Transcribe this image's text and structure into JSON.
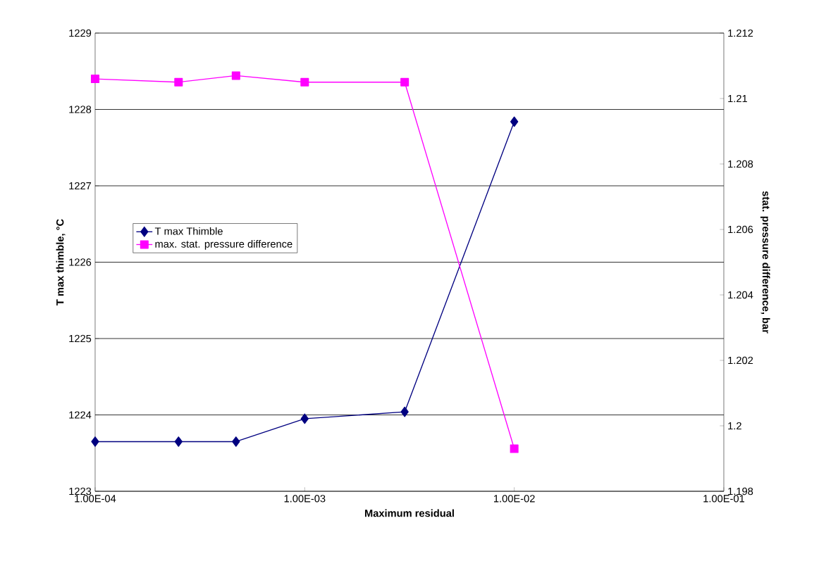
{
  "chart_data": {
    "type": "line",
    "xlabel": "Maximum residual",
    "ylabel": "T max thimble, °C",
    "y2label": "stat. pressure difference, bar",
    "log": "x",
    "grid": "y",
    "legend": "left",
    "line_style": "solid",
    "x": [
      0.0001,
      0.00025,
      0.00047,
      0.001,
      0.003,
      0.01
    ],
    "xlim": [
      0.0001,
      0.1
    ],
    "xticks": [
      {
        "value": 0.0001,
        "label": "1.00E-04"
      },
      {
        "value": 0.001,
        "label": "1.00E-03"
      },
      {
        "value": 0.01,
        "label": "1.00E-02"
      },
      {
        "value": 0.1,
        "label": "1.00E-01"
      }
    ],
    "ylim": [
      1223,
      1229
    ],
    "yticks": [
      1223,
      1224,
      1225,
      1226,
      1227,
      1228,
      1229
    ],
    "y2lim": [
      1.198,
      1.212
    ],
    "y2ticks": [
      1.198,
      1.2,
      1.202,
      1.204,
      1.206,
      1.208,
      1.21,
      1.212
    ],
    "series": [
      {
        "name": "T max Thimble",
        "color": "#000080",
        "marker": "diamond",
        "values": [
          1223.65,
          1223.65,
          1223.65,
          1223.95,
          1224.04,
          1227.84
        ]
      },
      {
        "name": "max. stat. pressure difference",
        "color": "#ff00ff",
        "marker": "square",
        "axis": "y2",
        "values": [
          1.2106,
          1.2105,
          1.2107,
          1.2105,
          1.2105,
          1.1993
        ]
      }
    ]
  }
}
